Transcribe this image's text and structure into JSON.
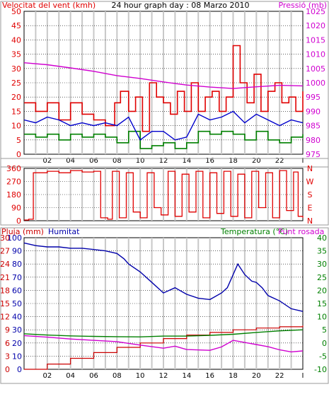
{
  "title": "24 hour graph day : 08 Marzo 2010",
  "colors": {
    "wind": "#e00000",
    "wind_avg": "#0000cc",
    "wind_green": "#008000",
    "pressure": "#d000d0",
    "direction": "#e00000",
    "rain": "#cc0000",
    "humidity": "#0000aa",
    "temperature": "#008000",
    "dewpoint": "#d000d0",
    "grid_vertical": "#c8c8c8",
    "grid_horizontal": "#000000",
    "frame": "#000000",
    "tick_text": "#000000"
  },
  "chart_data": [
    {
      "type": "line",
      "labels": {
        "left_axis": "Velocitat del vent (kmh)",
        "right_axis": "Pressió (mb)"
      },
      "x_ticks": [
        "02",
        "04",
        "06",
        "08",
        "10",
        "12",
        "14",
        "16",
        "18",
        "20",
        "22",
        "I"
      ],
      "y_left": {
        "min": 0,
        "max": 50,
        "ticks": [
          "0",
          "5",
          "10",
          "15",
          "20",
          "25",
          "30",
          "35",
          "40",
          "45",
          "50"
        ]
      },
      "y_right": {
        "min": 975,
        "max": 1025,
        "ticks": [
          "975",
          "980",
          "985",
          "990",
          "995",
          "1000",
          "1005",
          "1010",
          "1015",
          "1020",
          "1025"
        ]
      },
      "x_range": [
        0,
        24
      ],
      "series": [
        {
          "role": "wind_gust",
          "axis": "left",
          "points": [
            [
              0,
              18
            ],
            [
              1,
              15
            ],
            [
              2,
              18
            ],
            [
              3,
              12
            ],
            [
              4,
              18
            ],
            [
              5,
              14
            ],
            [
              6,
              12
            ],
            [
              7,
              10
            ],
            [
              7.8,
              18
            ],
            [
              8.3,
              22
            ],
            [
              9,
              15
            ],
            [
              9.6,
              20
            ],
            [
              10.2,
              8
            ],
            [
              10.8,
              25
            ],
            [
              11.4,
              20
            ],
            [
              12,
              18
            ],
            [
              12.6,
              14
            ],
            [
              13.2,
              22
            ],
            [
              13.8,
              15
            ],
            [
              14.4,
              25
            ],
            [
              15,
              15
            ],
            [
              15.6,
              20
            ],
            [
              16.2,
              22
            ],
            [
              16.8,
              15
            ],
            [
              17.4,
              20
            ],
            [
              18,
              38
            ],
            [
              18.6,
              25
            ],
            [
              19.2,
              18
            ],
            [
              19.8,
              28
            ],
            [
              20.4,
              15
            ],
            [
              21,
              22
            ],
            [
              21.6,
              25
            ],
            [
              22.2,
              18
            ],
            [
              22.8,
              20
            ],
            [
              23.4,
              15
            ],
            [
              24,
              22
            ]
          ]
        },
        {
          "role": "wind_avg",
          "axis": "left",
          "points": [
            [
              0,
              12
            ],
            [
              1,
              11
            ],
            [
              2,
              13
            ],
            [
              3,
              12
            ],
            [
              4,
              10
            ],
            [
              5,
              11
            ],
            [
              6,
              10
            ],
            [
              7,
              11
            ],
            [
              8,
              10
            ],
            [
              9,
              13
            ],
            [
              10,
              5
            ],
            [
              11,
              8
            ],
            [
              12,
              8
            ],
            [
              13,
              5
            ],
            [
              14,
              6
            ],
            [
              15,
              14
            ],
            [
              16,
              12
            ],
            [
              17,
              13
            ],
            [
              18,
              15
            ],
            [
              19,
              11
            ],
            [
              20,
              14
            ],
            [
              21,
              12
            ],
            [
              22,
              10
            ],
            [
              23,
              12
            ],
            [
              24,
              11
            ]
          ]
        },
        {
          "role": "wind_min",
          "axis": "left",
          "points": [
            [
              0,
              7
            ],
            [
              1,
              6
            ],
            [
              2,
              7
            ],
            [
              3,
              5
            ],
            [
              4,
              7
            ],
            [
              5,
              6
            ],
            [
              6,
              7
            ],
            [
              7,
              6
            ],
            [
              8,
              4
            ],
            [
              9,
              8
            ],
            [
              10,
              2
            ],
            [
              11,
              3
            ],
            [
              12,
              4
            ],
            [
              13,
              2
            ],
            [
              14,
              4
            ],
            [
              15,
              8
            ],
            [
              16,
              7
            ],
            [
              17,
              8
            ],
            [
              18,
              7
            ],
            [
              19,
              5
            ],
            [
              20,
              8
            ],
            [
              21,
              5
            ],
            [
              22,
              4
            ],
            [
              23,
              6
            ],
            [
              24,
              7
            ]
          ]
        },
        {
          "role": "pressure",
          "axis": "right",
          "points": [
            [
              0,
              1007
            ],
            [
              2,
              1006.3
            ],
            [
              4,
              1005.2
            ],
            [
              6,
              1004
            ],
            [
              8,
              1002.5
            ],
            [
              10,
              1001.5
            ],
            [
              12,
              1000.3
            ],
            [
              14,
              999.2
            ],
            [
              16,
              998.5
            ],
            [
              18,
              998
            ],
            [
              20,
              998.6
            ],
            [
              22,
              999.1
            ],
            [
              24,
              998.9
            ]
          ]
        }
      ]
    },
    {
      "type": "line",
      "labels": {
        "right_axis": "NWSEN"
      },
      "y_left": {
        "min": 0,
        "max": 360,
        "ticks": [
          "0",
          "90",
          "180",
          "270",
          "360"
        ]
      },
      "right_letters": [
        "N",
        "W",
        "S",
        "E",
        "N"
      ],
      "x_range": [
        0,
        24
      ],
      "series": [
        {
          "role": "direction",
          "axis": "left",
          "points": [
            [
              0,
              5
            ],
            [
              0.4,
              10
            ],
            [
              0.8,
              330
            ],
            [
              2,
              340
            ],
            [
              3,
              330
            ],
            [
              4,
              345
            ],
            [
              5,
              335
            ],
            [
              6,
              340
            ],
            [
              6.6,
              20
            ],
            [
              7.2,
              10
            ],
            [
              7.6,
              340
            ],
            [
              8.2,
              20
            ],
            [
              8.8,
              330
            ],
            [
              9.4,
              60
            ],
            [
              10,
              20
            ],
            [
              10.6,
              330
            ],
            [
              11.2,
              90
            ],
            [
              11.8,
              40
            ],
            [
              12.4,
              340
            ],
            [
              13,
              30
            ],
            [
              13.6,
              320
            ],
            [
              14.2,
              60
            ],
            [
              14.8,
              340
            ],
            [
              15.4,
              20
            ],
            [
              16,
              330
            ],
            [
              16.6,
              50
            ],
            [
              17.2,
              340
            ],
            [
              17.8,
              30
            ],
            [
              18.4,
              320
            ],
            [
              19,
              20
            ],
            [
              19.6,
              340
            ],
            [
              20.2,
              90
            ],
            [
              20.8,
              330
            ],
            [
              21.4,
              20
            ],
            [
              22,
              345
            ],
            [
              22.6,
              70
            ],
            [
              23.2,
              335
            ],
            [
              23.6,
              30
            ],
            [
              24,
              20
            ]
          ]
        }
      ]
    },
    {
      "type": "line",
      "labels": {
        "left_outer": "Pluja (mm)",
        "left_inner": "Humitat",
        "right_label_a": "Temperatura (°C)",
        "right_label_b": "Punt rosada"
      },
      "y_left_outer": {
        "min": 0,
        "max": 30,
        "ticks": [
          "0",
          "3",
          "6",
          "9",
          "12",
          "15",
          "18",
          "21",
          "24",
          "27",
          "30"
        ]
      },
      "y_left_inner": {
        "min": 0,
        "max": 100,
        "ticks": [
          "0",
          "10",
          "20",
          "30",
          "40",
          "50",
          "60",
          "70",
          "80",
          "90",
          "100"
        ]
      },
      "y_right": {
        "min": -10,
        "max": 40,
        "ticks": [
          "-10",
          "-5",
          "0",
          "5",
          "10",
          "15",
          "20",
          "25",
          "30",
          "35",
          "40"
        ]
      },
      "x_ticks": [
        "02",
        "04",
        "06",
        "08",
        "10",
        "12",
        "14",
        "16",
        "18",
        "20",
        "22",
        "I"
      ],
      "x_range": [
        0,
        24
      ],
      "series": [
        {
          "role": "humidity",
          "axis": "left_inner",
          "points": [
            [
              0,
              96
            ],
            [
              1,
              94
            ],
            [
              2,
              93
            ],
            [
              3,
              93
            ],
            [
              4,
              92
            ],
            [
              5,
              92
            ],
            [
              6,
              91
            ],
            [
              7,
              90
            ],
            [
              8,
              88
            ],
            [
              8.6,
              84
            ],
            [
              9,
              80
            ],
            [
              10,
              74
            ],
            [
              11,
              66
            ],
            [
              12,
              58
            ],
            [
              13,
              62
            ],
            [
              14,
              57
            ],
            [
              15,
              54
            ],
            [
              16,
              53
            ],
            [
              17,
              58
            ],
            [
              17.5,
              62
            ],
            [
              18,
              72
            ],
            [
              18.4,
              80
            ],
            [
              19,
              72
            ],
            [
              19.6,
              67
            ],
            [
              20,
              66
            ],
            [
              20.5,
              62
            ],
            [
              21,
              56
            ],
            [
              22,
              52
            ],
            [
              23,
              46
            ],
            [
              24,
              44
            ]
          ]
        },
        {
          "role": "rain",
          "axis": "left_outer",
          "points": [
            [
              0,
              0
            ],
            [
              2,
              1.2
            ],
            [
              4,
              2.5
            ],
            [
              6,
              3.8
            ],
            [
              8,
              5
            ],
            [
              10,
              6
            ],
            [
              12,
              7
            ],
            [
              14,
              7.8
            ],
            [
              16,
              8.4
            ],
            [
              18,
              9
            ],
            [
              20,
              9.4
            ],
            [
              22,
              9.7
            ],
            [
              24,
              10
            ]
          ]
        },
        {
          "role": "temperature",
          "axis": "right",
          "points": [
            [
              0,
              3.5
            ],
            [
              2,
              3.0
            ],
            [
              4,
              2.7
            ],
            [
              6,
              2.5
            ],
            [
              8,
              2.4
            ],
            [
              10,
              2.3
            ],
            [
              12,
              2.6
            ],
            [
              14,
              2.6
            ],
            [
              16,
              2.9
            ],
            [
              18,
              3.3
            ],
            [
              20,
              4.0
            ],
            [
              22,
              4.6
            ],
            [
              24,
              5.0
            ]
          ]
        },
        {
          "role": "dewpoint",
          "axis": "right",
          "points": [
            [
              0,
              2.8
            ],
            [
              2,
              2.2
            ],
            [
              4,
              1.5
            ],
            [
              6,
              1.0
            ],
            [
              8,
              0.5
            ],
            [
              10,
              -0.8
            ],
            [
              12,
              -2.0
            ],
            [
              13,
              -1.2
            ],
            [
              14,
              -2.5
            ],
            [
              16,
              -2.8
            ],
            [
              17,
              -1.5
            ],
            [
              18,
              1.0
            ],
            [
              19,
              0.2
            ],
            [
              20,
              -0.6
            ],
            [
              21,
              -1.4
            ],
            [
              22,
              -2.6
            ],
            [
              23,
              -3.4
            ],
            [
              24,
              -3.0
            ]
          ]
        }
      ]
    }
  ]
}
